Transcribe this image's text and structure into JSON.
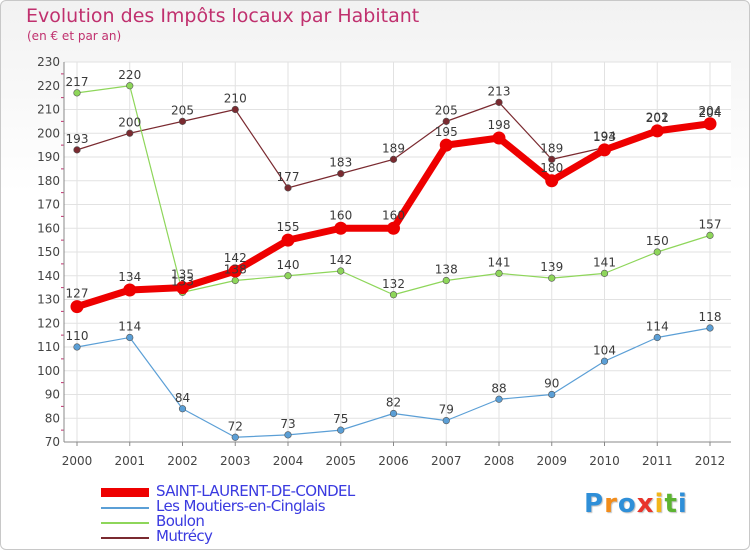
{
  "title": "Evolution des Impôts locaux par Habitant",
  "subtitle": "(en € et par an)",
  "logo": {
    "letters": [
      "P",
      "r",
      "o",
      "x",
      "i",
      "t",
      "i"
    ],
    "colors": [
      "#2f8fd8",
      "#f28c1a",
      "#2f8fd8",
      "#e8342b",
      "#f2b61a",
      "#5cb431",
      "#2f8fd8"
    ]
  },
  "chart_data": {
    "type": "line",
    "x": [
      "2000",
      "2001",
      "2002",
      "2003",
      "2004",
      "2005",
      "2006",
      "2007",
      "2008",
      "2009",
      "2010",
      "2011",
      "2012"
    ],
    "ylim": [
      70,
      230
    ],
    "yticks": [
      "70",
      "80",
      "90",
      "100",
      "110",
      "120",
      "130",
      "140",
      "150",
      "160",
      "170",
      "180",
      "190",
      "200",
      "210",
      "220",
      "230"
    ],
    "grid": true,
    "legend_position": "bottom-left",
    "series": [
      {
        "name": "Mutrécy",
        "color": "#7a2a30",
        "values": [
          193,
          200,
          205,
          210,
          177,
          183,
          189,
          205,
          213,
          189,
          194,
          202,
          204
        ],
        "labels": [
          "193",
          "200",
          "205",
          "210",
          "177",
          "183",
          "189",
          "205",
          "213",
          "189",
          "194",
          "202",
          "204"
        ]
      },
      {
        "name": "Boulon",
        "color": "#8ed65a",
        "values": [
          217,
          220,
          133,
          138,
          140,
          142,
          132,
          138,
          141,
          139,
          141,
          150,
          157
        ],
        "labels": [
          "217",
          "220",
          "133",
          "138",
          "140",
          "142",
          "132",
          "138",
          "141",
          "139",
          "141",
          "150",
          "157"
        ]
      },
      {
        "name": "Les Moutiers-en-Cinglais",
        "color": "#5b9fd6",
        "values": [
          110,
          114,
          84,
          72,
          73,
          75,
          82,
          79,
          88,
          90,
          104,
          114,
          118
        ],
        "labels": [
          "110",
          "114",
          "84",
          "72",
          "73",
          "75",
          "82",
          "79",
          "88",
          "90",
          "104",
          "114",
          "118"
        ]
      },
      {
        "name": "SAINT-LAURENT-DE-CONDEL",
        "color": "#ee0000",
        "values": [
          127,
          134,
          135,
          142,
          155,
          160,
          160,
          195,
          198,
          180,
          193,
          201,
          204
        ],
        "labels": [
          "127",
          "134",
          "135",
          "142",
          "155",
          "160",
          "160",
          "195",
          "198",
          "180",
          "193",
          "201",
          "204"
        ]
      }
    ],
    "legend_order": [
      "SAINT-LAURENT-DE-CONDEL",
      "Les Moutiers-en-Cinglais",
      "Boulon",
      "Mutrécy"
    ]
  }
}
